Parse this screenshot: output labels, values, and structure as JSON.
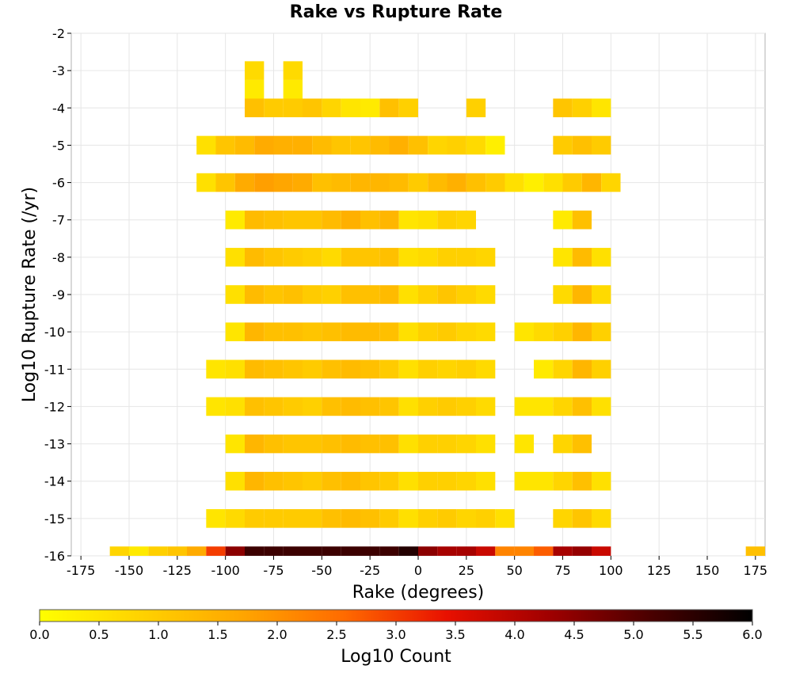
{
  "chart_data": {
    "type": "heatmap",
    "title": "Rake vs Rupture Rate",
    "xlabel": "Rake (degrees)",
    "ylabel": "Log10 Rupture Rate (/yr)",
    "xlim": [
      -180,
      180
    ],
    "ylim": [
      -16,
      -2
    ],
    "xticks": [
      "-175",
      "-150",
      "-125",
      "-100",
      "-75",
      "-50",
      "-25",
      "0",
      "25",
      "50",
      "75",
      "100",
      "125",
      "150",
      "175"
    ],
    "yticks": [
      "-2",
      "-3",
      "-4",
      "-5",
      "-6",
      "-7",
      "-8",
      "-9",
      "-10",
      "-11",
      "-12",
      "-13",
      "-14",
      "-15",
      "-16"
    ],
    "grid": true,
    "colorbar": {
      "label": "Log10 Count",
      "range": [
        0,
        6
      ],
      "ticks": [
        "0.0",
        "0.5",
        "1.0",
        "1.5",
        "2.0",
        "2.5",
        "3.0",
        "3.5",
        "4.0",
        "4.5",
        "5.0",
        "5.5",
        "6.0"
      ],
      "colors": [
        "#ffff00",
        "#ffd200",
        "#ffa500",
        "#ff6a00",
        "#e81000",
        "#a00000",
        "#4a0000",
        "#000000"
      ]
    },
    "bin_width_x": 10,
    "bin_height_y": 0.5,
    "cells": [
      [
        -155,
        -16,
        0.8
      ],
      [
        -145,
        -16,
        0.4
      ],
      [
        -135,
        -16,
        0.9
      ],
      [
        -125,
        -16,
        1.1
      ],
      [
        -115,
        -16,
        1.6
      ],
      [
        -105,
        -16,
        3.0
      ],
      [
        -95,
        -16,
        4.5
      ],
      [
        -85,
        -16,
        5.3
      ],
      [
        -75,
        -16,
        5.3
      ],
      [
        -65,
        -16,
        5.3
      ],
      [
        -55,
        -16,
        5.3
      ],
      [
        -45,
        -16,
        5.3
      ],
      [
        -35,
        -16,
        5.3
      ],
      [
        -25,
        -16,
        5.3
      ],
      [
        -15,
        -16,
        5.3
      ],
      [
        -5,
        -16,
        5.6
      ],
      [
        5,
        -16,
        4.5
      ],
      [
        15,
        -16,
        4.2
      ],
      [
        25,
        -16,
        4.2
      ],
      [
        35,
        -16,
        3.8
      ],
      [
        45,
        -16,
        2.2
      ],
      [
        55,
        -16,
        2.2
      ],
      [
        65,
        -16,
        2.7
      ],
      [
        75,
        -16,
        4.2
      ],
      [
        85,
        -16,
        4.4
      ],
      [
        95,
        -16,
        3.8
      ],
      [
        175,
        -16,
        1.2
      ],
      [
        -85,
        -3,
        0.7
      ],
      [
        -65,
        -3,
        0.7
      ],
      [
        -85,
        -3.5,
        0.4
      ],
      [
        -65,
        -3.5,
        0.4
      ],
      [
        -85,
        -4,
        1.2
      ],
      [
        -75,
        -4,
        1.0
      ],
      [
        -65,
        -4,
        1.0
      ],
      [
        -55,
        -4,
        1.1
      ],
      [
        -45,
        -4,
        0.8
      ],
      [
        -35,
        -4,
        0.5
      ],
      [
        -25,
        -4,
        0.4
      ],
      [
        -15,
        -4,
        1.2
      ],
      [
        -5,
        -4,
        0.9
      ],
      [
        30,
        -4,
        0.9
      ],
      [
        95,
        -4,
        0.5
      ],
      [
        75,
        -4,
        1.1
      ],
      [
        85,
        -4,
        0.9
      ],
      [
        -110,
        -5,
        0.6
      ],
      [
        -100,
        -5,
        1.1
      ],
      [
        -90,
        -5,
        1.3
      ],
      [
        -80,
        -5,
        1.6
      ],
      [
        -70,
        -5,
        1.5
      ],
      [
        -60,
        -5,
        1.5
      ],
      [
        -50,
        -5,
        1.3
      ],
      [
        -40,
        -5,
        1.1
      ],
      [
        -30,
        -5,
        1.1
      ],
      [
        -20,
        -5,
        1.3
      ],
      [
        -10,
        -5,
        1.5
      ],
      [
        0,
        -5,
        1.2
      ],
      [
        10,
        -5,
        0.8
      ],
      [
        20,
        -5,
        0.9
      ],
      [
        30,
        -5,
        0.7
      ],
      [
        40,
        -5,
        0.3
      ],
      [
        75,
        -5,
        1.0
      ],
      [
        85,
        -5,
        1.2
      ],
      [
        95,
        -5,
        1.0
      ],
      [
        -110,
        -6,
        0.6
      ],
      [
        -100,
        -6,
        1.1
      ],
      [
        -90,
        -6,
        1.6
      ],
      [
        -80,
        -6,
        1.8
      ],
      [
        -70,
        -6,
        1.7
      ],
      [
        -60,
        -6,
        1.6
      ],
      [
        -50,
        -6,
        1.2
      ],
      [
        -40,
        -6,
        1.3
      ],
      [
        -30,
        -6,
        1.4
      ],
      [
        -20,
        -6,
        1.4
      ],
      [
        -10,
        -6,
        1.3
      ],
      [
        0,
        -6,
        1.0
      ],
      [
        10,
        -6,
        1.3
      ],
      [
        20,
        -6,
        1.5
      ],
      [
        30,
        -6,
        1.2
      ],
      [
        40,
        -6,
        1.0
      ],
      [
        50,
        -6,
        0.6
      ],
      [
        60,
        -6,
        0.3
      ],
      [
        70,
        -6,
        0.6
      ],
      [
        80,
        -6,
        1.0
      ],
      [
        90,
        -6,
        1.4
      ],
      [
        100,
        -6,
        0.8
      ],
      [
        -95,
        -7,
        0.4
      ],
      [
        -85,
        -7,
        1.3
      ],
      [
        -75,
        -7,
        1.2
      ],
      [
        -65,
        -7,
        1.1
      ],
      [
        -55,
        -7,
        1.1
      ],
      [
        -45,
        -7,
        1.3
      ],
      [
        -35,
        -7,
        1.5
      ],
      [
        -25,
        -7,
        1.2
      ],
      [
        -15,
        -7,
        1.4
      ],
      [
        -5,
        -7,
        0.5
      ],
      [
        5,
        -7,
        0.6
      ],
      [
        15,
        -7,
        0.9
      ],
      [
        25,
        -7,
        0.8
      ],
      [
        75,
        -7,
        0.4
      ],
      [
        85,
        -7,
        1.2
      ],
      [
        -95,
        -8,
        0.6
      ],
      [
        -85,
        -8,
        1.3
      ],
      [
        -75,
        -8,
        1.1
      ],
      [
        -65,
        -8,
        1.0
      ],
      [
        -55,
        -8,
        0.9
      ],
      [
        -45,
        -8,
        0.7
      ],
      [
        -35,
        -8,
        1.1
      ],
      [
        -25,
        -8,
        1.1
      ],
      [
        -15,
        -8,
        1.2
      ],
      [
        -5,
        -8,
        0.6
      ],
      [
        5,
        -8,
        0.7
      ],
      [
        15,
        -8,
        0.9
      ],
      [
        25,
        -8,
        0.9
      ],
      [
        35,
        -8,
        0.8
      ],
      [
        75,
        -8,
        0.5
      ],
      [
        85,
        -8,
        1.3
      ],
      [
        95,
        -8,
        0.6
      ],
      [
        -95,
        -9,
        0.6
      ],
      [
        -85,
        -9,
        1.3
      ],
      [
        -75,
        -9,
        1.1
      ],
      [
        -65,
        -9,
        1.2
      ],
      [
        -55,
        -9,
        1.0
      ],
      [
        -45,
        -9,
        0.9
      ],
      [
        -35,
        -9,
        1.2
      ],
      [
        -25,
        -9,
        1.2
      ],
      [
        -15,
        -9,
        1.3
      ],
      [
        -5,
        -9,
        0.6
      ],
      [
        5,
        -9,
        0.9
      ],
      [
        15,
        -9,
        1.1
      ],
      [
        25,
        -9,
        0.9
      ],
      [
        35,
        -9,
        0.7
      ],
      [
        75,
        -9,
        0.7
      ],
      [
        85,
        -9,
        1.4
      ],
      [
        95,
        -9,
        0.7
      ],
      [
        -95,
        -10,
        0.5
      ],
      [
        -85,
        -10,
        1.4
      ],
      [
        -75,
        -10,
        1.2
      ],
      [
        -65,
        -10,
        1.2
      ],
      [
        -55,
        -10,
        1.1
      ],
      [
        -45,
        -10,
        1.2
      ],
      [
        -35,
        -10,
        1.3
      ],
      [
        -25,
        -10,
        1.3
      ],
      [
        -15,
        -10,
        1.2
      ],
      [
        -5,
        -10,
        0.6
      ],
      [
        5,
        -10,
        0.9
      ],
      [
        15,
        -10,
        1.0
      ],
      [
        25,
        -10,
        0.8
      ],
      [
        35,
        -10,
        0.7
      ],
      [
        55,
        -10,
        0.5
      ],
      [
        65,
        -10,
        0.7
      ],
      [
        75,
        -10,
        0.9
      ],
      [
        85,
        -10,
        1.4
      ],
      [
        95,
        -10,
        0.9
      ],
      [
        -105,
        -11,
        0.5
      ],
      [
        -95,
        -11,
        0.6
      ],
      [
        -85,
        -11,
        1.3
      ],
      [
        -75,
        -11,
        1.2
      ],
      [
        -65,
        -11,
        1.1
      ],
      [
        -55,
        -11,
        1.0
      ],
      [
        -45,
        -11,
        1.2
      ],
      [
        -35,
        -11,
        1.3
      ],
      [
        -25,
        -11,
        1.2
      ],
      [
        -15,
        -11,
        1.0
      ],
      [
        -5,
        -11,
        0.6
      ],
      [
        5,
        -11,
        0.9
      ],
      [
        15,
        -11,
        0.8
      ],
      [
        25,
        -11,
        0.9
      ],
      [
        35,
        -11,
        0.7
      ],
      [
        65,
        -11,
        0.4
      ],
      [
        75,
        -11,
        0.8
      ],
      [
        85,
        -11,
        1.4
      ],
      [
        95,
        -11,
        0.9
      ],
      [
        -105,
        -12,
        0.5
      ],
      [
        -95,
        -12,
        0.6
      ],
      [
        -85,
        -12,
        1.2
      ],
      [
        -75,
        -12,
        1.1
      ],
      [
        -65,
        -12,
        1.0
      ],
      [
        -55,
        -12,
        0.9
      ],
      [
        -45,
        -12,
        1.2
      ],
      [
        -35,
        -12,
        1.3
      ],
      [
        -25,
        -12,
        1.2
      ],
      [
        -15,
        -12,
        1.1
      ],
      [
        -5,
        -12,
        0.6
      ],
      [
        5,
        -12,
        0.9
      ],
      [
        15,
        -12,
        1.0
      ],
      [
        25,
        -12,
        0.9
      ],
      [
        35,
        -12,
        0.7
      ],
      [
        55,
        -12,
        0.5
      ],
      [
        65,
        -12,
        0.5
      ],
      [
        75,
        -12,
        0.8
      ],
      [
        85,
        -12,
        1.2
      ],
      [
        95,
        -12,
        0.6
      ],
      [
        -95,
        -13,
        0.5
      ],
      [
        -85,
        -13,
        1.4
      ],
      [
        -75,
        -13,
        1.2
      ],
      [
        -65,
        -13,
        1.1
      ],
      [
        -55,
        -13,
        1.1
      ],
      [
        -45,
        -13,
        1.2
      ],
      [
        -35,
        -13,
        1.3
      ],
      [
        -25,
        -13,
        1.2
      ],
      [
        -15,
        -13,
        1.2
      ],
      [
        -5,
        -13,
        0.6
      ],
      [
        5,
        -13,
        0.9
      ],
      [
        15,
        -13,
        0.9
      ],
      [
        25,
        -13,
        0.8
      ],
      [
        35,
        -13,
        0.6
      ],
      [
        55,
        -13,
        0.5
      ],
      [
        75,
        -13,
        0.8
      ],
      [
        85,
        -13,
        1.2
      ],
      [
        -95,
        -14,
        0.6
      ],
      [
        -85,
        -14,
        1.4
      ],
      [
        -75,
        -14,
        1.2
      ],
      [
        -65,
        -14,
        1.1
      ],
      [
        -55,
        -14,
        1.0
      ],
      [
        -45,
        -14,
        1.2
      ],
      [
        -35,
        -14,
        1.3
      ],
      [
        -25,
        -14,
        1.1
      ],
      [
        -15,
        -14,
        1.0
      ],
      [
        -5,
        -14,
        0.6
      ],
      [
        5,
        -14,
        0.9
      ],
      [
        15,
        -14,
        0.9
      ],
      [
        25,
        -14,
        0.8
      ],
      [
        35,
        -14,
        0.6
      ],
      [
        55,
        -14,
        0.5
      ],
      [
        65,
        -14,
        0.5
      ],
      [
        75,
        -14,
        0.8
      ],
      [
        85,
        -14,
        1.2
      ],
      [
        95,
        -14,
        0.6
      ],
      [
        -105,
        -15,
        0.5
      ],
      [
        -95,
        -15,
        0.7
      ],
      [
        -85,
        -15,
        1.0
      ],
      [
        -75,
        -15,
        1.0
      ],
      [
        -65,
        -15,
        1.0
      ],
      [
        -55,
        -15,
        1.0
      ],
      [
        -45,
        -15,
        1.2
      ],
      [
        -35,
        -15,
        1.3
      ],
      [
        -25,
        -15,
        1.2
      ],
      [
        -15,
        -15,
        1.0
      ],
      [
        -5,
        -15,
        0.6
      ],
      [
        5,
        -15,
        0.9
      ],
      [
        15,
        -15,
        1.0
      ],
      [
        25,
        -15,
        0.8
      ],
      [
        35,
        -15,
        0.9
      ],
      [
        45,
        -15,
        0.6
      ],
      [
        75,
        -15,
        0.8
      ],
      [
        85,
        -15,
        1.1
      ],
      [
        95,
        -15,
        0.7
      ]
    ]
  }
}
